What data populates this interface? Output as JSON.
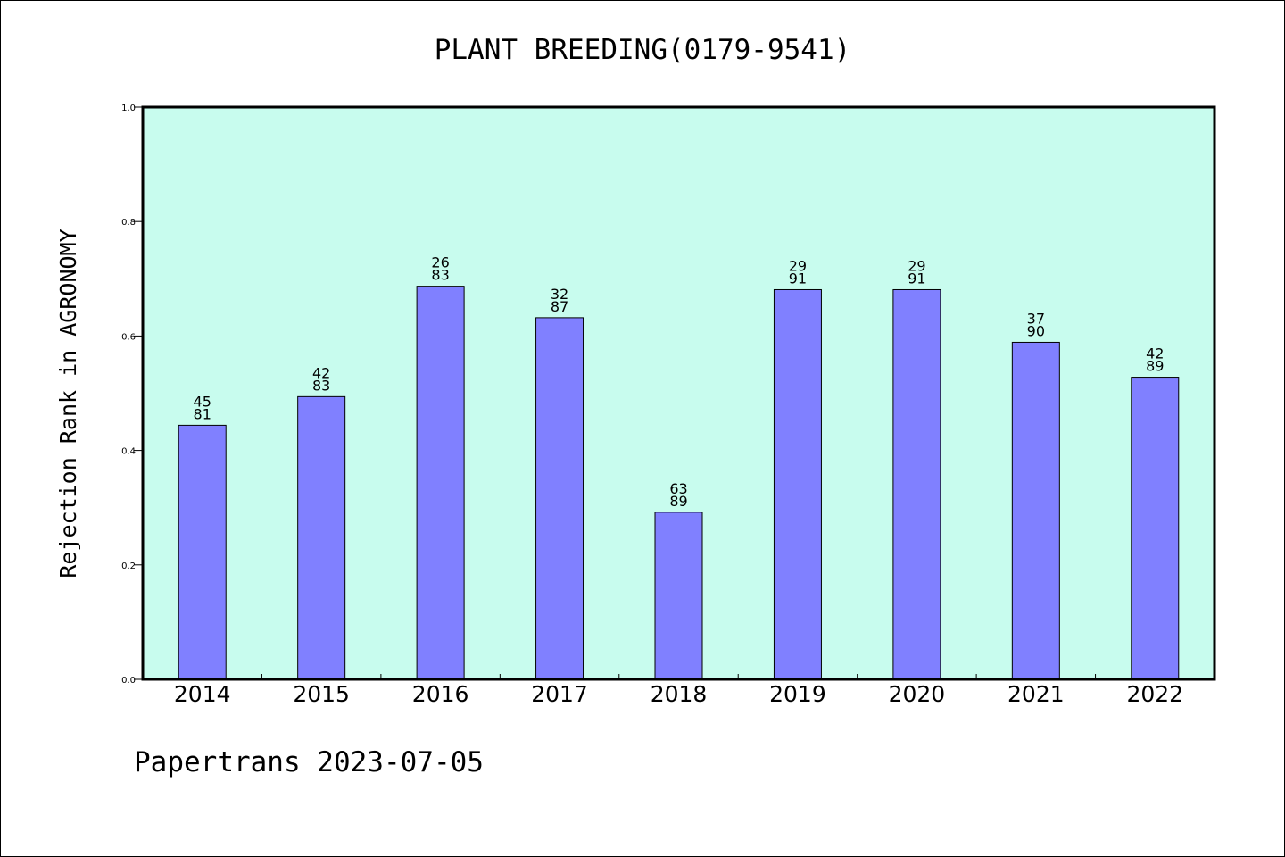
{
  "chart_data": {
    "type": "bar",
    "title": "PLANT BREEDING(0179-9541)",
    "xlabel": "",
    "ylabel": "Rejection Rank in AGRONOMY",
    "ylim": [
      0.0,
      1.0
    ],
    "yticks": [
      "0.0",
      "0.2",
      "0.4",
      "0.6",
      "0.8",
      "1.0"
    ],
    "grid": false,
    "categories": [
      "2014",
      "2015",
      "2016",
      "2017",
      "2018",
      "2019",
      "2020",
      "2021",
      "2022"
    ],
    "values": [
      0.444,
      0.494,
      0.687,
      0.632,
      0.292,
      0.681,
      0.681,
      0.589,
      0.528
    ],
    "bar_labels": [
      [
        "45",
        "81"
      ],
      [
        "42",
        "83"
      ],
      [
        "26",
        "83"
      ],
      [
        "32",
        "87"
      ],
      [
        "63",
        "89"
      ],
      [
        "29",
        "91"
      ],
      [
        "29",
        "91"
      ],
      [
        "37",
        "90"
      ],
      [
        "42",
        "89"
      ]
    ],
    "colors": {
      "bar": "#8080ff",
      "plot_background": "#c8fcee",
      "axes": "#000000"
    }
  },
  "footer": {
    "text": "Papertrans 2023-07-05"
  }
}
